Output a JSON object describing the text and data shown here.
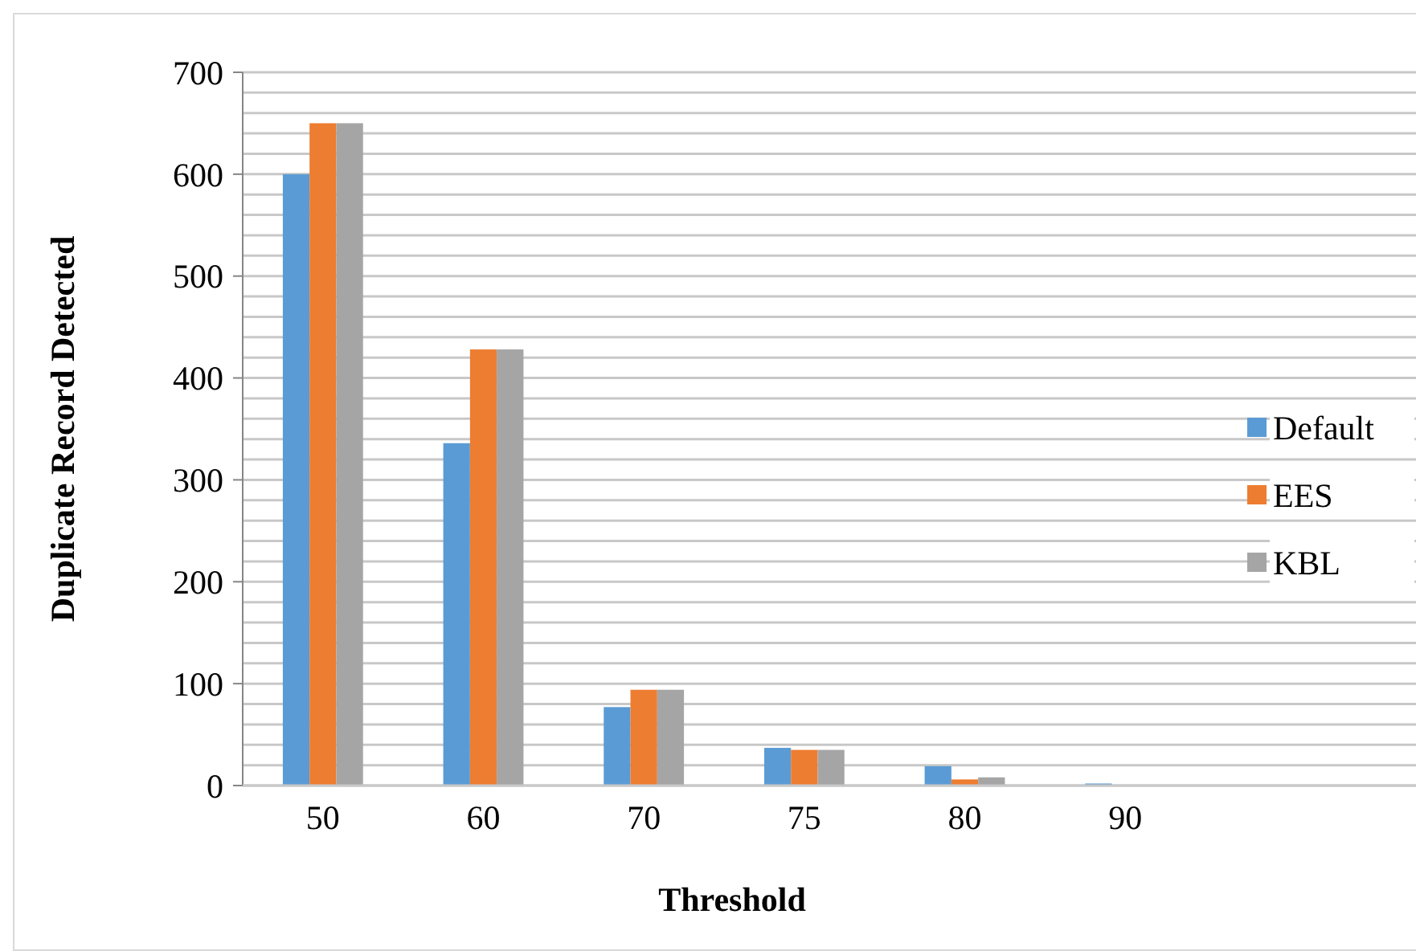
{
  "chart_data": {
    "type": "bar",
    "xlabel": "Threshold",
    "ylabel": "Duplicate Record Detected",
    "categories": [
      "50",
      "60",
      "70",
      "75",
      "80",
      "90"
    ],
    "series": [
      {
        "name": "Default",
        "color": "#5b9bd5",
        "values": [
          600,
          336,
          77,
          37,
          19,
          2
        ]
      },
      {
        "name": "EES",
        "color": "#ed7d31",
        "values": [
          650,
          428,
          94,
          35,
          6,
          0
        ]
      },
      {
        "name": "KBL",
        "color": "#a5a5a5",
        "values": [
          650,
          428,
          94,
          35,
          8,
          0
        ]
      }
    ],
    "ylim": [
      0,
      700
    ],
    "yticks": [
      0,
      {
        "value": 20,
        "label": null
      },
      {
        "value": 40,
        "label": null
      },
      {
        "value": 60,
        "label": null
      },
      {
        "value": 80,
        "label": null
      },
      100,
      {
        "value": 120,
        "label": null
      },
      {
        "value": 140,
        "label": null
      },
      {
        "value": 160,
        "label": null
      },
      {
        "value": 180,
        "label": null
      },
      200,
      {
        "value": 220,
        "label": null
      },
      {
        "value": 240,
        "label": null
      },
      {
        "value": 260,
        "label": null
      },
      {
        "value": 280,
        "label": null
      },
      300,
      {
        "value": 320,
        "label": null
      },
      {
        "value": 340,
        "label": null
      },
      {
        "value": 360,
        "label": null
      },
      {
        "value": 380,
        "label": null
      },
      400,
      {
        "value": 420,
        "label": null
      },
      {
        "value": 440,
        "label": null
      },
      {
        "value": 460,
        "label": null
      },
      {
        "value": 480,
        "label": null
      },
      500,
      {
        "value": 520,
        "label": null
      },
      {
        "value": 540,
        "label": null
      },
      {
        "value": 560,
        "label": null
      },
      {
        "value": 580,
        "label": null
      },
      600,
      {
        "value": 620,
        "label": null
      },
      {
        "value": 640,
        "label": null
      },
      {
        "value": 660,
        "label": null
      },
      {
        "value": 680,
        "label": null
      },
      700
    ],
    "grid": "y",
    "legend": "right"
  }
}
